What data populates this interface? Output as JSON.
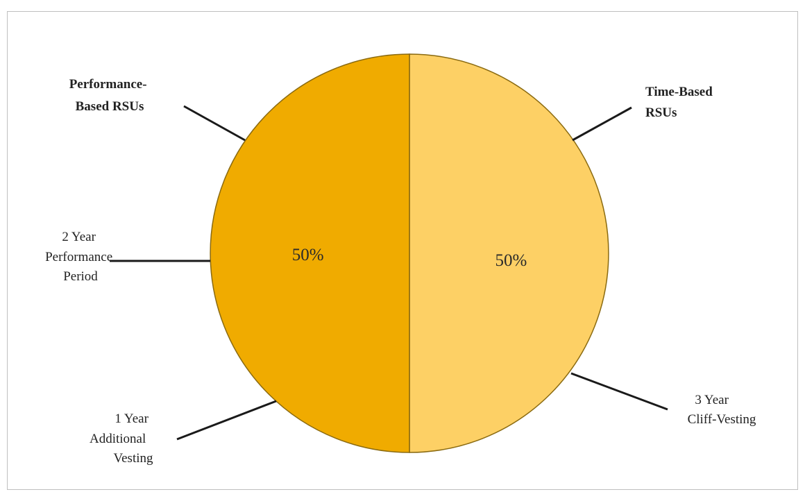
{
  "chart_data": {
    "type": "pie",
    "slices": [
      {
        "label": "Time-Based RSUs",
        "value": 50,
        "display": "50%",
        "color": "#fdd065"
      },
      {
        "label": "Performance-Based RSUs",
        "value": 50,
        "display": "50%",
        "color": "#f0ab00"
      }
    ],
    "annotations": {
      "performance_title": [
        "Performance-",
        "Based RSUs"
      ],
      "time_title": [
        "Time-Based",
        "RSUs"
      ],
      "performance_period": [
        "2 Year",
        "Performance",
        "Period"
      ],
      "additional_vesting": [
        "1 Year",
        "Additional",
        "Vesting"
      ],
      "cliff_vesting": [
        "3 Year",
        "Cliff-Vesting"
      ]
    },
    "outline_color": "#8a6a10",
    "leader_color": "#1a1a1a"
  }
}
